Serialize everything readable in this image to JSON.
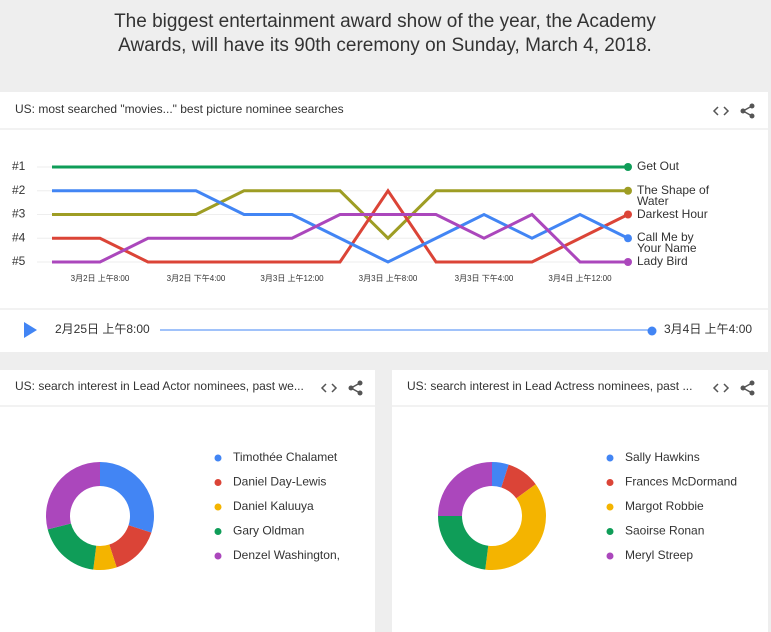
{
  "header": {
    "text": "The biggest entertainment award show of the year, the Academy Awards, will have its 90th ceremony on Sunday, March 4, 2018."
  },
  "chart_data": [
    {
      "type": "line",
      "title": "US: most searched \"movies...\" best picture nominee searches",
      "categories": [
        null,
        "3月2日 上午8:00",
        null,
        "3月2日 下午4:00",
        null,
        "3月3日 上午12:00",
        null,
        "3月3日 上午8:00",
        null,
        "3月3日 下午4:00",
        null,
        "3月4日 上午12:00",
        null
      ],
      "ylim": [
        5,
        1
      ],
      "yticks": [
        {
          "value": 1,
          "label": "#1"
        },
        {
          "value": 2,
          "label": "#2"
        },
        {
          "value": 3,
          "label": "#3"
        },
        {
          "value": 4,
          "label": "#4"
        },
        {
          "value": 5,
          "label": "#5"
        }
      ],
      "series": [
        {
          "name": "Get Out",
          "color": "#0f9d58",
          "values": [
            1,
            1,
            1,
            1,
            1,
            1,
            1,
            1,
            1,
            1,
            1,
            1,
            1
          ]
        },
        {
          "name": "The Shape of Water",
          "color": "#9e9d24",
          "values": [
            3,
            3,
            3,
            3,
            2,
            2,
            2,
            4,
            2,
            2,
            2,
            2,
            2
          ]
        },
        {
          "name": "Darkest Hour",
          "color": "#db4437",
          "values": [
            4,
            4,
            5,
            5,
            5,
            5,
            5,
            2,
            5,
            5,
            5,
            4,
            3
          ]
        },
        {
          "name": "Call Me by Your Name",
          "color": "#4285f4",
          "values": [
            2,
            2,
            2,
            2,
            3,
            3,
            4,
            5,
            4,
            3,
            4,
            3,
            4
          ]
        },
        {
          "name": "Lady Bird",
          "color": "#ab47bc",
          "values": [
            5,
            5,
            4,
            4,
            4,
            4,
            3,
            3,
            3,
            4,
            3,
            5,
            5
          ]
        }
      ],
      "slider": {
        "start": "2月25日 上午8:00",
        "end": "3月4日 上午4:00"
      }
    },
    {
      "type": "pie",
      "title": "US: search interest in Lead Actor nominees, past we...",
      "categories": [
        "Timothée Chalamet",
        "Daniel Day-Lewis",
        "Daniel Kaluuya",
        "Gary Oldman",
        "Denzel Washington,"
      ],
      "values": [
        30,
        15,
        7,
        19,
        29
      ],
      "colors": [
        "#4285f4",
        "#db4437",
        "#f4b400",
        "#0f9d58",
        "#ab47bc"
      ]
    },
    {
      "type": "pie",
      "title": "US: search interest in Lead Actress nominees, past ...",
      "categories": [
        "Sally Hawkins",
        "Frances McDormand",
        "Margot Robbie",
        "Saoirse Ronan",
        "Meryl Streep"
      ],
      "values": [
        5,
        10,
        37,
        23,
        25
      ],
      "colors": [
        "#4285f4",
        "#db4437",
        "#f4b400",
        "#0f9d58",
        "#ab47bc"
      ]
    }
  ]
}
